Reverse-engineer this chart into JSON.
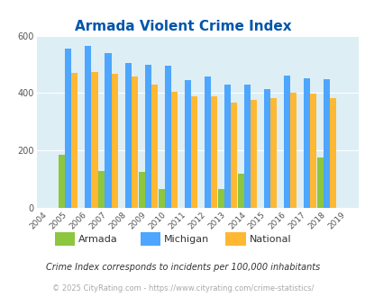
{
  "title": "Armada Violent Crime Index",
  "years": [
    2004,
    2005,
    2006,
    2007,
    2008,
    2009,
    2010,
    2011,
    2012,
    2013,
    2014,
    2015,
    2016,
    2017,
    2018,
    2019
  ],
  "armada": [
    0,
    185,
    0,
    130,
    0,
    125,
    65,
    0,
    0,
    65,
    120,
    0,
    0,
    0,
    175,
    0
  ],
  "michigan": [
    0,
    555,
    565,
    540,
    505,
    500,
    495,
    445,
    458,
    430,
    430,
    415,
    460,
    452,
    448,
    0
  ],
  "national": [
    0,
    470,
    473,
    466,
    457,
    430,
    405,
    389,
    390,
    368,
    376,
    383,
    400,
    397,
    383,
    0
  ],
  "armada_color": "#8dc63f",
  "michigan_color": "#4da6ff",
  "national_color": "#ffb833",
  "bg_color": "#ddeef5",
  "title_color": "#0055aa",
  "ylabel_max": 600,
  "yticks": [
    0,
    200,
    400,
    600
  ],
  "footnote": "Crime Index corresponds to incidents per 100,000 inhabitants",
  "copyright": "© 2025 CityRating.com - https://www.cityrating.com/crime-statistics/",
  "bar_width": 0.32
}
